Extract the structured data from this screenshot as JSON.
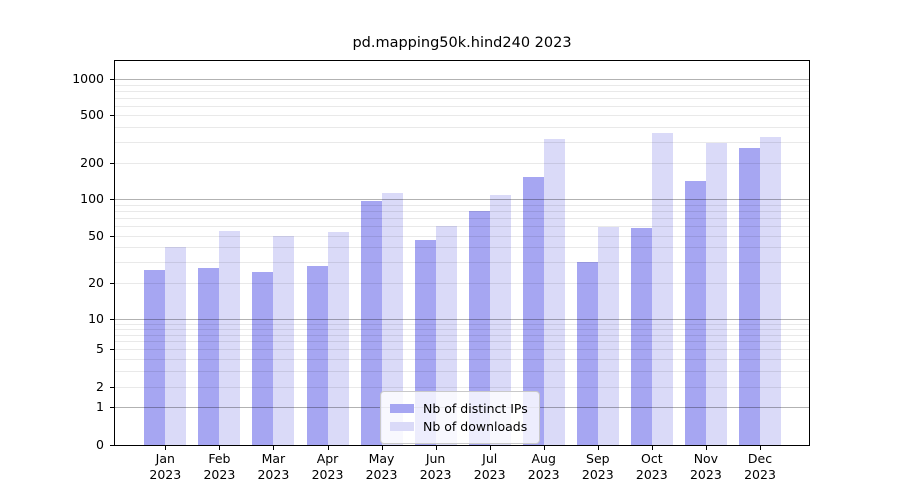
{
  "title": "pd.mapping50k.hind240 2023",
  "chart_data": {
    "type": "bar",
    "categories": [
      "Jan 2023",
      "Feb 2023",
      "Mar 2023",
      "Apr 2023",
      "May 2023",
      "Jun 2023",
      "Jul 2023",
      "Aug 2023",
      "Sep 2023",
      "Oct 2023",
      "Nov 2023",
      "Dec 2023"
    ],
    "series": [
      {
        "name": "Nb of distinct IPs",
        "color": "#a6a6f2",
        "values": [
          26,
          27,
          25,
          28,
          97,
          46,
          80,
          154,
          30,
          58,
          143,
          267
        ]
      },
      {
        "name": "Nb of downloads",
        "color": "#dadaf8",
        "values": [
          40,
          55,
          50,
          54,
          113,
          60,
          109,
          315,
          59,
          355,
          295,
          330
        ]
      }
    ],
    "title": "pd.mapping50k.hind240 2023",
    "xlabel": "",
    "ylabel": "",
    "yscale": "symlog",
    "yticks": [
      0,
      1,
      2,
      5,
      10,
      20,
      50,
      100,
      200,
      500,
      1000
    ],
    "ylim": [
      0,
      1450
    ],
    "grid": true,
    "legend_position": "lower center"
  },
  "legend": {
    "items": [
      "Nb of distinct IPs",
      "Nb of downloads"
    ]
  },
  "colors": {
    "distinct_ips": "#a6a6f2",
    "downloads": "#dadaf8",
    "major_grid": "#b0b0b0",
    "minor_grid": "#e7e7e7",
    "axis": "#000000",
    "background": "#ffffff"
  }
}
